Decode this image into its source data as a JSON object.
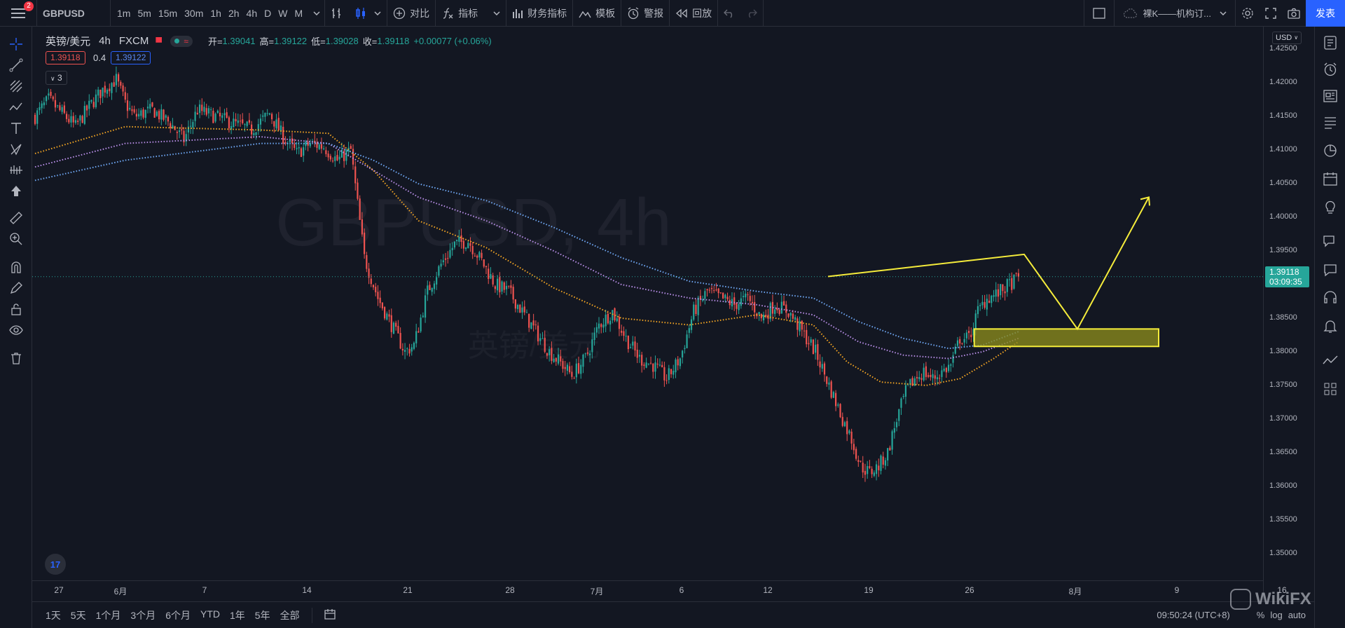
{
  "topbar": {
    "notification_count": "2",
    "symbol": "GBPUSD",
    "intervals": [
      "1m",
      "5m",
      "15m",
      "30m",
      "1h",
      "2h",
      "4h",
      "D",
      "W",
      "M"
    ],
    "active_interval": "4h",
    "compare_label": "对比",
    "indicators_label": "指标",
    "financials_label": "财务指标",
    "templates_label": "模板",
    "alert_label": "警报",
    "replay_label": "回放",
    "layout_name": "裸K——机构订...",
    "publish_label": "发表"
  },
  "legend": {
    "title": "英镑/美元",
    "interval": "4h",
    "source": "FXCM",
    "open_label": "开=",
    "open": "1.39041",
    "high_label": "高=",
    "high": "1.39122",
    "low_label": "低=",
    "low": "1.39028",
    "close_label": "收=",
    "close": "1.39118",
    "change": "+0.00077 (+0.06%)",
    "bid": "1.39118",
    "spread": "0.4",
    "ask": "1.39122",
    "indicators_collapsed": "3"
  },
  "watermark": {
    "symbol": "GBPUSD, 4h",
    "name": "英镑/美元"
  },
  "price_axis": {
    "currency": "USD",
    "labels": [
      "1.42500",
      "1.42000",
      "1.41500",
      "1.41000",
      "1.40500",
      "1.40000",
      "1.39500",
      "1.39000",
      "1.38500",
      "1.38000",
      "1.37500",
      "1.37000",
      "1.36500",
      "1.36000",
      "1.35500",
      "1.35000"
    ],
    "last_price": "1.39118",
    "countdown": "03:09:35"
  },
  "time_axis": {
    "labels": [
      "27",
      "6月",
      "7",
      "14",
      "21",
      "28",
      "7月",
      "6",
      "12",
      "19",
      "26",
      "8月",
      "9",
      "16"
    ]
  },
  "bottom": {
    "ranges": [
      "1天",
      "5天",
      "1个月",
      "3个月",
      "6个月",
      "YTD",
      "1年",
      "5年",
      "全部"
    ],
    "clock": "09:50:24 (UTC+8)",
    "pct_label": "%",
    "log_label": "log",
    "auto_label": "auto",
    "watermark_brand": "WikiFX"
  },
  "colors": {
    "background": "#131722",
    "up": "#26a69a",
    "down": "#ef5350",
    "ema_fast": "#f5a623",
    "ema_mid": "#b98ee8",
    "ema_slow": "#6fa8f5",
    "projection": "#f5ec3b",
    "accent": "#2962ff"
  },
  "chart_data": {
    "type": "candlestick",
    "symbol": "GBPUSD",
    "timeframe": "4h",
    "y_range": [
      1.346,
      1.4265
    ],
    "x_labels": [
      "27",
      "6月",
      "7",
      "14",
      "21",
      "28",
      "7月",
      "6",
      "12",
      "19",
      "26",
      "8月",
      "9",
      "16"
    ],
    "price_path": [
      [
        0,
        1.415
      ],
      [
        6,
        1.4175
      ],
      [
        12,
        1.4155
      ],
      [
        18,
        1.4135
      ],
      [
        24,
        1.4165
      ],
      [
        30,
        1.419
      ],
      [
        36,
        1.4205
      ],
      [
        40,
        1.417
      ],
      [
        44,
        1.415
      ],
      [
        52,
        1.416
      ],
      [
        60,
        1.414
      ],
      [
        66,
        1.4115
      ],
      [
        72,
        1.416
      ],
      [
        80,
        1.415
      ],
      [
        88,
        1.414
      ],
      [
        96,
        1.413
      ],
      [
        104,
        1.4155
      ],
      [
        110,
        1.412
      ],
      [
        116,
        1.4095
      ],
      [
        122,
        1.411
      ],
      [
        128,
        1.4105
      ],
      [
        134,
        1.4085
      ],
      [
        140,
        1.41
      ],
      [
        146,
        1.394
      ],
      [
        152,
        1.388
      ],
      [
        158,
        1.384
      ],
      [
        164,
        1.38
      ],
      [
        168,
        1.381
      ],
      [
        174,
        1.389
      ],
      [
        180,
        1.393
      ],
      [
        186,
        1.396
      ],
      [
        192,
        1.3965
      ],
      [
        198,
        1.3935
      ],
      [
        204,
        1.39
      ],
      [
        210,
        1.389
      ],
      [
        216,
        1.386
      ],
      [
        222,
        1.383
      ],
      [
        228,
        1.38
      ],
      [
        234,
        1.378
      ],
      [
        238,
        1.3765
      ],
      [
        244,
        1.379
      ],
      [
        250,
        1.384
      ],
      [
        256,
        1.386
      ],
      [
        262,
        1.382
      ],
      [
        268,
        1.379
      ],
      [
        274,
        1.378
      ],
      [
        280,
        1.376
      ],
      [
        286,
        1.379
      ],
      [
        292,
        1.386
      ],
      [
        298,
        1.389
      ],
      [
        304,
        1.388
      ],
      [
        310,
        1.387
      ],
      [
        316,
        1.388
      ],
      [
        322,
        1.385
      ],
      [
        328,
        1.387
      ],
      [
        334,
        1.386
      ],
      [
        340,
        1.383
      ],
      [
        346,
        1.38
      ],
      [
        352,
        1.375
      ],
      [
        358,
        1.37
      ],
      [
        362,
        1.367
      ],
      [
        366,
        1.363
      ],
      [
        370,
        1.362
      ],
      [
        374,
        1.363
      ],
      [
        378,
        1.365
      ],
      [
        382,
        1.37
      ],
      [
        386,
        1.374
      ],
      [
        390,
        1.376
      ],
      [
        394,
        1.377
      ],
      [
        398,
        1.376
      ],
      [
        402,
        1.377
      ],
      [
        406,
        1.378
      ],
      [
        410,
        1.382
      ],
      [
        414,
        1.382
      ],
      [
        418,
        1.386
      ],
      [
        422,
        1.388
      ],
      [
        426,
        1.3885
      ],
      [
        430,
        1.3895
      ],
      [
        434,
        1.3905
      ],
      [
        436,
        1.3912
      ]
    ],
    "ema_fast": [
      [
        0,
        1.4095
      ],
      [
        40,
        1.4135
      ],
      [
        100,
        1.413
      ],
      [
        130,
        1.4125
      ],
      [
        150,
        1.407
      ],
      [
        170,
        1.3995
      ],
      [
        200,
        1.3955
      ],
      [
        230,
        1.3895
      ],
      [
        260,
        1.385
      ],
      [
        290,
        1.384
      ],
      [
        320,
        1.3855
      ],
      [
        345,
        1.384
      ],
      [
        360,
        1.3785
      ],
      [
        375,
        1.3755
      ],
      [
        395,
        1.375
      ],
      [
        410,
        1.376
      ],
      [
        425,
        1.379
      ],
      [
        436,
        1.3815
      ]
    ],
    "ema_mid": [
      [
        0,
        1.4075
      ],
      [
        40,
        1.411
      ],
      [
        100,
        1.412
      ],
      [
        130,
        1.411
      ],
      [
        150,
        1.407
      ],
      [
        170,
        1.403
      ],
      [
        200,
        1.3995
      ],
      [
        230,
        1.395
      ],
      [
        260,
        1.39
      ],
      [
        290,
        1.388
      ],
      [
        320,
        1.387
      ],
      [
        345,
        1.3855
      ],
      [
        365,
        1.3815
      ],
      [
        385,
        1.3795
      ],
      [
        405,
        1.379
      ],
      [
        420,
        1.38
      ],
      [
        436,
        1.382
      ]
    ],
    "ema_slow": [
      [
        0,
        1.4055
      ],
      [
        40,
        1.4085
      ],
      [
        100,
        1.411
      ],
      [
        130,
        1.411
      ],
      [
        150,
        1.4085
      ],
      [
        170,
        1.405
      ],
      [
        200,
        1.4025
      ],
      [
        230,
        1.3985
      ],
      [
        260,
        1.394
      ],
      [
        290,
        1.3905
      ],
      [
        320,
        1.389
      ],
      [
        345,
        1.388
      ],
      [
        365,
        1.3845
      ],
      [
        385,
        1.382
      ],
      [
        405,
        1.3805
      ],
      [
        420,
        1.381
      ],
      [
        436,
        1.383
      ]
    ],
    "highlight_zone": {
      "price_top": 1.3834,
      "price_bottom": 1.3808
    },
    "projection": [
      [
        436,
        1.3912
      ],
      [
        440,
        1.3945
      ],
      [
        456,
        1.3834
      ],
      [
        478,
        1.403
      ]
    ],
    "last_price": 1.39118
  }
}
